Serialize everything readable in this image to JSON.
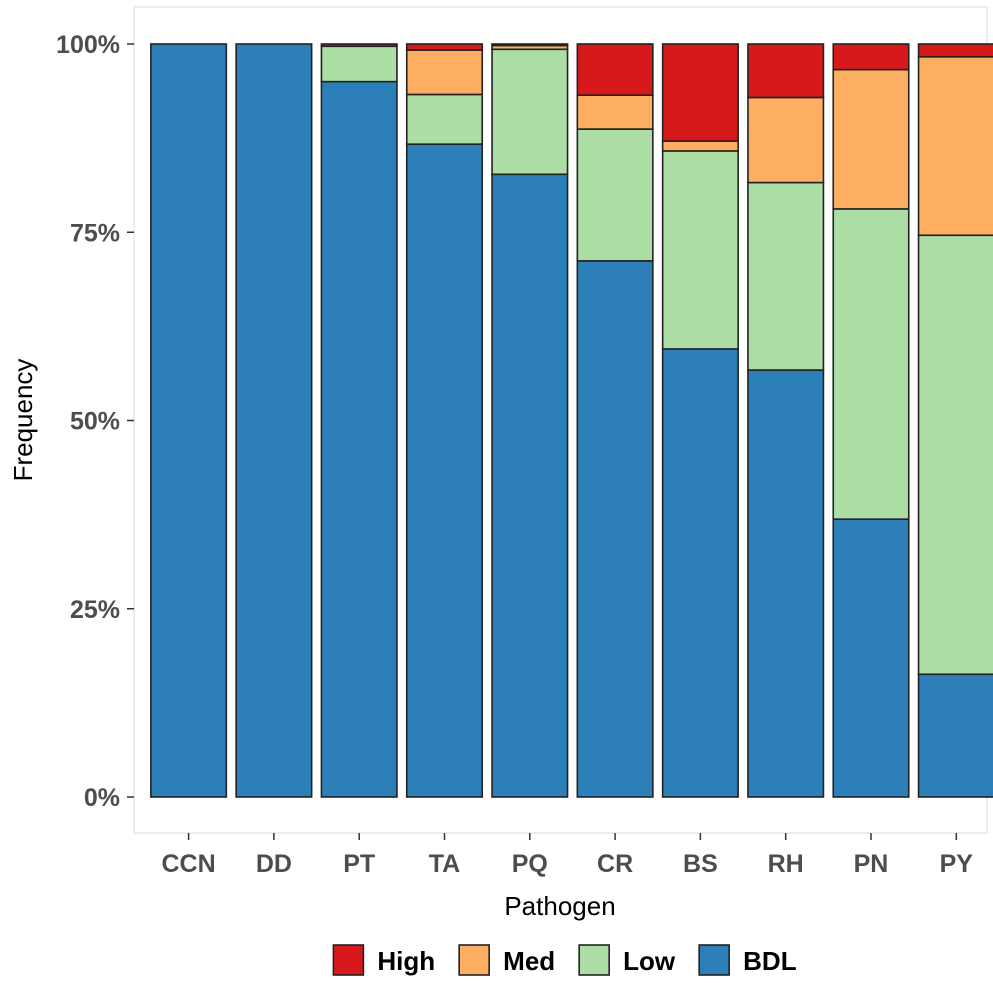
{
  "chart_data": {
    "type": "bar",
    "stacked": true,
    "percent": true,
    "xlabel": "Pathogen",
    "ylabel": "Frequency",
    "ylim": [
      0,
      100
    ],
    "yticks": [
      "0%",
      "25%",
      "50%",
      "75%",
      "100%"
    ],
    "ytick_values": [
      0,
      25,
      50,
      75,
      100
    ],
    "categories": [
      "CCN",
      "DD",
      "PT",
      "TA",
      "PQ",
      "CR",
      "BS",
      "RH",
      "PN",
      "PY"
    ],
    "series": [
      {
        "name": "BDL",
        "color": "#2C7FB8",
        "values": [
          100,
          100,
          95.0,
          86.7,
          82.7,
          71.2,
          59.5,
          56.7,
          36.9,
          16.3
        ]
      },
      {
        "name": "Low",
        "color": "#ABDDA4",
        "values": [
          0,
          0,
          4.7,
          6.6,
          16.6,
          17.5,
          26.3,
          24.9,
          41.2,
          58.3
        ]
      },
      {
        "name": "Med",
        "color": "#FDAE61",
        "values": [
          0,
          0,
          0,
          5.9,
          0.5,
          4.5,
          1.3,
          11.3,
          18.5,
          23.7
        ]
      },
      {
        "name": "High",
        "color": "#D7191C",
        "values": [
          0,
          0,
          0.3,
          0.8,
          0.2,
          6.8,
          12.9,
          7.1,
          3.4,
          1.7
        ]
      }
    ],
    "legend": {
      "position": "bottom",
      "order": [
        "High",
        "Med",
        "Low",
        "BDL"
      ]
    },
    "grid": false
  }
}
